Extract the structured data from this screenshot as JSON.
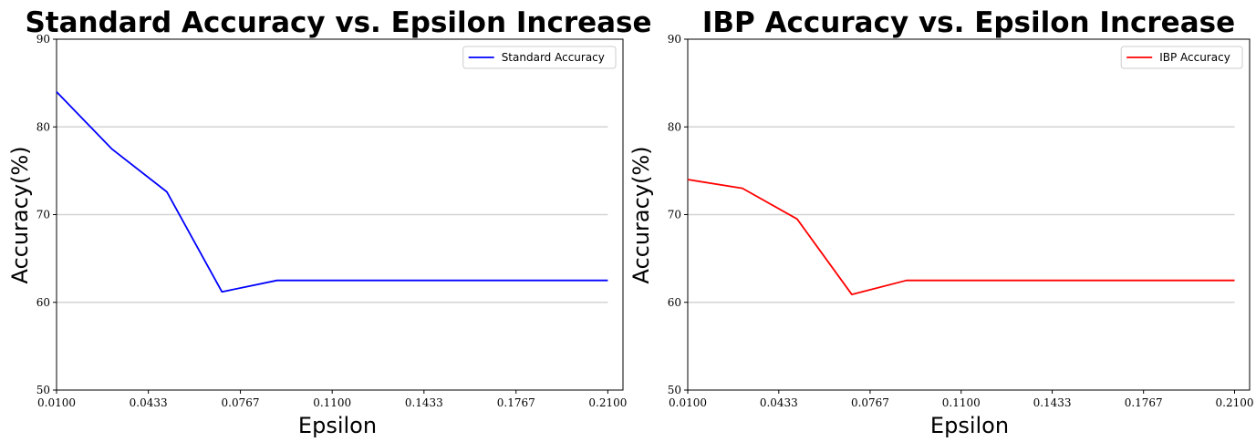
{
  "chart_data": [
    {
      "type": "line",
      "title": "Standard Accuracy vs. Epsilon Increase",
      "xlabel": "Epsilon",
      "ylabel": "Accuracy(%)",
      "xlim": [
        0.01,
        0.2155
      ],
      "ylim": [
        50,
        90
      ],
      "xticks": [
        "0.0100",
        "0.0433",
        "0.0767",
        "0.1100",
        "0.1433",
        "0.1767",
        "0.2100"
      ],
      "xtick_values": [
        0.01,
        0.0433,
        0.0767,
        0.11,
        0.1433,
        0.1767,
        0.21
      ],
      "yticks": [
        50,
        60,
        70,
        80,
        90
      ],
      "grid": "horizontal y 60-80",
      "legend_position": "top-right",
      "series": [
        {
          "name": "Standard Accuracy",
          "color": "#0000ff",
          "x": [
            0.01,
            0.03,
            0.05,
            0.07,
            0.09,
            0.11,
            0.13,
            0.15,
            0.17,
            0.19,
            0.21
          ],
          "y": [
            84.0,
            77.5,
            72.6,
            61.2,
            62.5,
            62.5,
            62.5,
            62.5,
            62.5,
            62.5,
            62.5
          ]
        }
      ]
    },
    {
      "type": "line",
      "title": "IBP Accuracy vs. Epsilon Increase",
      "xlabel": "Epsilon",
      "ylabel": "Accuracy(%)",
      "xlim": [
        0.01,
        0.2155
      ],
      "ylim": [
        50,
        90
      ],
      "xticks": [
        "0.0100",
        "0.0433",
        "0.0767",
        "0.1100",
        "0.1433",
        "0.1767",
        "0.2100"
      ],
      "xtick_values": [
        0.01,
        0.0433,
        0.0767,
        0.11,
        0.1433,
        0.1767,
        0.21
      ],
      "yticks": [
        50,
        60,
        70,
        80,
        90
      ],
      "grid": "horizontal y 60-80",
      "legend_position": "top-right",
      "series": [
        {
          "name": "IBP Accuracy",
          "color": "#ff0000",
          "x": [
            0.01,
            0.03,
            0.05,
            0.07,
            0.09,
            0.11,
            0.13,
            0.15,
            0.17,
            0.19,
            0.21
          ],
          "y": [
            74.0,
            73.0,
            69.5,
            60.9,
            62.5,
            62.5,
            62.5,
            62.5,
            62.5,
            62.5,
            62.5
          ]
        }
      ]
    }
  ]
}
